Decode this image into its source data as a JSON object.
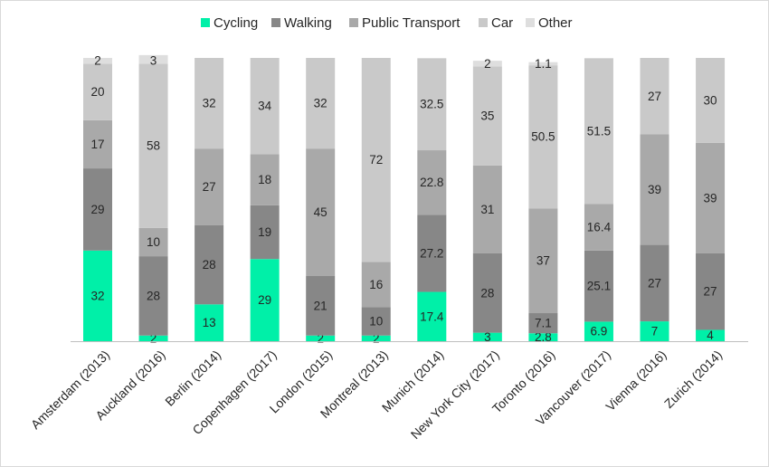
{
  "chart_data": {
    "type": "bar",
    "stacked": true,
    "categories": [
      "Amsterdam (2013)",
      "Auckland (2016)",
      "Berlin (2014)",
      "Copenhagen (2017)",
      "London (2015)",
      "Montreal (2013)",
      "Munich (2014)",
      "New York City (2017)",
      "Toronto (2016)",
      "Vancouver (2017)",
      "Vienna (2016)",
      "Zurich (2014)"
    ],
    "series": [
      {
        "name": "Cycling",
        "color": "#00f0a8",
        "values": [
          32,
          2,
          13,
          29,
          2,
          2,
          17.4,
          3,
          2.8,
          6.9,
          7,
          4
        ]
      },
      {
        "name": "Walking",
        "color": "#878787",
        "values": [
          29,
          28,
          28,
          19,
          21,
          10,
          27.2,
          28,
          7.1,
          25.1,
          27,
          27
        ]
      },
      {
        "name": "Public Transport",
        "color": "#a9a9a9",
        "values": [
          17,
          10,
          27,
          18,
          45,
          16,
          22.8,
          31,
          37,
          16.4,
          39,
          39
        ]
      },
      {
        "name": "Car",
        "color": "#c9c9c9",
        "values": [
          20,
          58,
          32,
          34,
          32,
          72,
          32.5,
          35,
          50.5,
          51.5,
          27,
          30
        ]
      },
      {
        "name": "Other",
        "color": "#dedede",
        "values": [
          2,
          3,
          0,
          0,
          0,
          0,
          0,
          2,
          1.1,
          0,
          0,
          0
        ]
      }
    ],
    "labels": [
      [
        "32",
        "2",
        "13",
        "29",
        "2",
        "2",
        "17.4",
        "3",
        "2.8",
        "6.9",
        "7",
        "4"
      ],
      [
        "29",
        "28",
        "28",
        "19",
        "21",
        "10",
        "27.2",
        "28",
        "7.1",
        "25.1",
        "27",
        "27"
      ],
      [
        "17",
        "10",
        "27",
        "18",
        "45",
        "16",
        "22.8",
        "31",
        "37",
        "16.4",
        "39",
        "39"
      ],
      [
        "20",
        "58",
        "32",
        "34",
        "32",
        "72",
        "32.5",
        "35",
        "50.5",
        "51.5",
        "27",
        "30"
      ],
      [
        "2",
        "3",
        "",
        "",
        "",
        "",
        "",
        "2",
        "1.1",
        "",
        "",
        ""
      ]
    ],
    "ylim": [
      0,
      100
    ],
    "grid": false,
    "legend_position": "top-center",
    "title": "",
    "xlabel": "",
    "ylabel": ""
  }
}
